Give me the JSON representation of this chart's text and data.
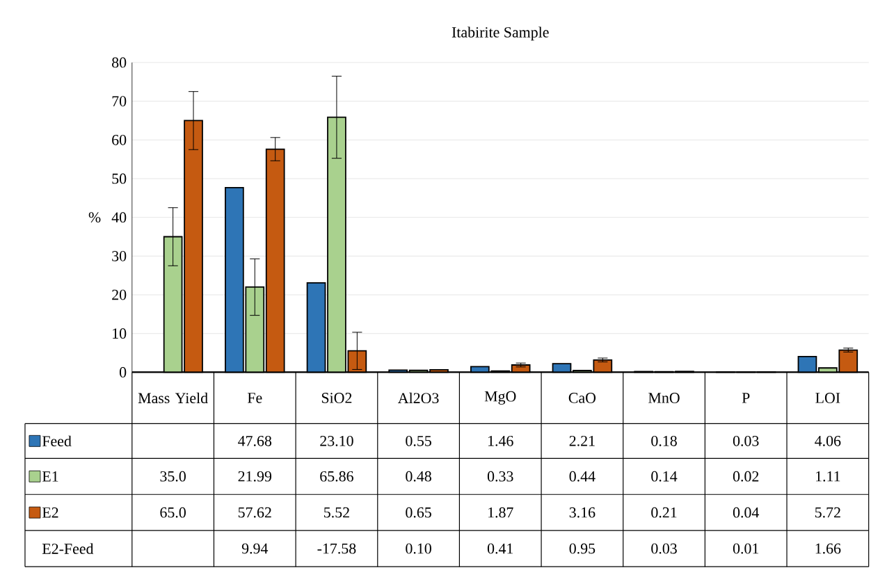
{
  "chart_data": {
    "type": "bar",
    "title": "Itabirite Sample",
    "ylabel": "%",
    "categories": [
      "Mass Yield",
      "Fe",
      "SiO2",
      "Al2O3",
      "MgO",
      "CaO",
      "MnO",
      "P",
      "LOI"
    ],
    "series": [
      {
        "name": "Feed",
        "color": "#2e75b6",
        "values": [
          null,
          47.68,
          23.1,
          0.55,
          1.46,
          2.21,
          0.18,
          0.03,
          4.06
        ],
        "value_labels": [
          null,
          "47.68",
          "23.10",
          "0.55",
          "1.46",
          "2.21",
          "0.18",
          "0.03",
          "4.06"
        ]
      },
      {
        "name": "E1",
        "color": "#a9d18e",
        "values": [
          35.0,
          21.99,
          65.86,
          0.48,
          0.33,
          0.44,
          0.14,
          0.02,
          1.11
        ],
        "value_labels": [
          "35.0",
          "21.99",
          "65.86",
          "0.48",
          "0.33",
          "0.44",
          "0.14",
          "0.02",
          "1.11"
        ],
        "errors": [
          7.5,
          7.3,
          10.6,
          null,
          null,
          null,
          null,
          null,
          null
        ]
      },
      {
        "name": "E2",
        "color": "#c55a11",
        "values": [
          65.0,
          57.62,
          5.52,
          0.65,
          1.87,
          3.16,
          0.21,
          0.04,
          5.72
        ],
        "value_labels": [
          "65.0",
          "57.62",
          "5.52",
          "0.65",
          "1.87",
          "3.16",
          "0.21",
          "0.04",
          "5.72"
        ],
        "errors": [
          7.5,
          3.0,
          4.8,
          null,
          0.5,
          0.5,
          null,
          null,
          0.5
        ]
      }
    ],
    "annotations": [
      "E2-Feed",
      "9.94",
      "-17.58",
      "0.10",
      "0.41",
      "0.95",
      "0.03",
      "0.01",
      "1.66"
    ],
    "ylim": [
      0,
      80
    ],
    "yticks": [
      0,
      10,
      20,
      30,
      40,
      50,
      60,
      70,
      80
    ],
    "grid": true,
    "legend": "bottom"
  }
}
